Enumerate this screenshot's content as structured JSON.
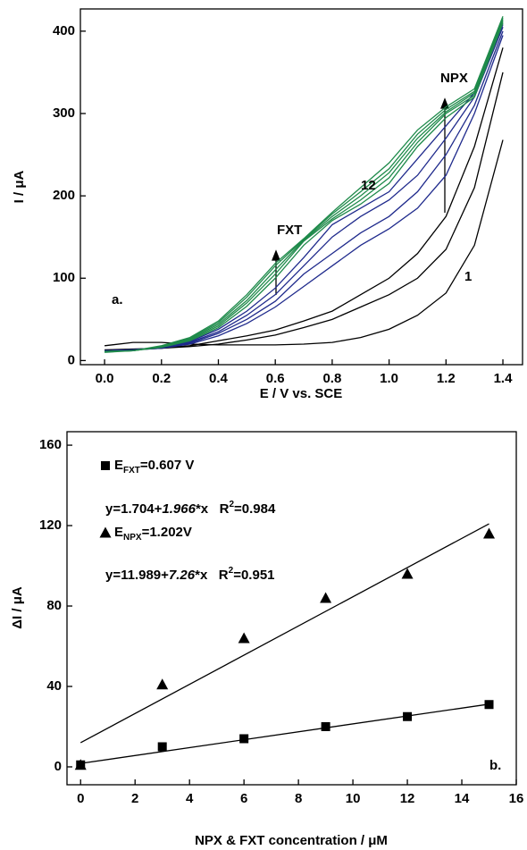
{
  "chart_data": [
    {
      "type": "line",
      "xlabel": "E / V vs. SCE",
      "ylabel": "I / μA",
      "x": [
        0,
        0.1,
        0.2,
        0.3,
        0.4,
        0.5,
        0.6,
        0.7,
        0.8,
        0.9,
        1.0,
        1.1,
        1.2,
        1.3,
        1.4
      ],
      "series": [
        {
          "color": "#000000",
          "values": [
            18,
            22,
            22,
            20,
            19,
            19,
            19,
            20,
            22,
            28,
            38,
            55,
            82,
            140,
            268
          ]
        },
        {
          "color": "#000000",
          "values": [
            13,
            14,
            15,
            17,
            20,
            25,
            31,
            40,
            50,
            65,
            80,
            100,
            135,
            210,
            350
          ]
        },
        {
          "color": "#000000",
          "values": [
            12,
            13,
            15,
            18,
            24,
            30,
            37,
            48,
            60,
            80,
            100,
            130,
            175,
            260,
            380
          ]
        },
        {
          "color": "#1f2a8c",
          "values": [
            12,
            13,
            15,
            20,
            30,
            45,
            65,
            90,
            115,
            140,
            160,
            185,
            225,
            300,
            395
          ]
        },
        {
          "color": "#1f2a8c",
          "values": [
            12,
            13,
            16,
            21,
            33,
            50,
            72,
            105,
            130,
            155,
            175,
            205,
            250,
            310,
            400
          ]
        },
        {
          "color": "#1f2a8c",
          "values": [
            12,
            13,
            16,
            22,
            35,
            55,
            80,
            115,
            150,
            175,
            195,
            225,
            270,
            320,
            405
          ]
        },
        {
          "color": "#1f2a8c",
          "values": [
            12,
            13,
            16,
            23,
            38,
            60,
            88,
            125,
            165,
            185,
            205,
            245,
            285,
            325,
            408
          ]
        },
        {
          "color": "#1e8a4a",
          "values": [
            11,
            12,
            16,
            24,
            40,
            66,
            100,
            140,
            170,
            190,
            215,
            260,
            295,
            320,
            410
          ]
        },
        {
          "color": "#1e8a4a",
          "values": [
            11,
            12,
            17,
            25,
            42,
            70,
            105,
            145,
            172,
            195,
            222,
            265,
            300,
            322,
            412
          ]
        },
        {
          "color": "#1e8a4a",
          "values": [
            11,
            12,
            17,
            26,
            44,
            73,
            110,
            146,
            175,
            200,
            228,
            270,
            302,
            325,
            414
          ]
        },
        {
          "color": "#1e8a4a",
          "values": [
            11,
            12,
            17,
            27,
            46,
            77,
            115,
            147,
            178,
            205,
            233,
            275,
            305,
            327,
            416
          ]
        },
        {
          "color": "#1e8a4a",
          "values": [
            10,
            12,
            18,
            28,
            48,
            80,
            118,
            148,
            180,
            210,
            240,
            280,
            308,
            330,
            418
          ]
        }
      ],
      "xlim": [
        -0.085,
        1.469
      ],
      "ylim": [
        -5,
        427
      ],
      "xticks": [
        {
          "value": 0,
          "label": "0.0"
        },
        {
          "value": 0.2,
          "label": "0.2"
        },
        {
          "value": 0.4,
          "label": "0.4"
        },
        {
          "value": 0.6,
          "label": "0.6"
        },
        {
          "value": 0.8,
          "label": "0.8"
        },
        {
          "value": 1.0,
          "label": "1.0"
        },
        {
          "value": 1.2,
          "label": "1.2"
        },
        {
          "value": 1.4,
          "label": "1.4"
        }
      ],
      "yticks": [
        0,
        100,
        200,
        300,
        400
      ],
      "annotations": [
        {
          "text": "a."
        },
        {
          "text": "FXT"
        },
        {
          "text": "NPX"
        },
        {
          "text": "12"
        },
        {
          "text": "1"
        }
      ]
    },
    {
      "type": "scatter",
      "xlabel": "NPX & FXT concentration / μM",
      "ylabel": "ΔI / μA",
      "series": [
        {
          "marker": "square",
          "color": "#000000",
          "x": [
            0,
            3,
            6,
            9,
            12,
            15
          ],
          "values": [
            1,
            10,
            14,
            20,
            25,
            31
          ]
        },
        {
          "marker": "triangle",
          "color": "#000000",
          "x": [
            0,
            3,
            6,
            9,
            12,
            15
          ],
          "values": [
            1,
            41,
            64,
            84,
            96,
            116
          ]
        },
        {
          "marker": "line",
          "color": "#000000",
          "x": [
            0,
            15
          ],
          "values": [
            1.7,
            31.2
          ]
        },
        {
          "marker": "line",
          "color": "#000000",
          "x": [
            0,
            15
          ],
          "values": [
            12,
            120.9
          ]
        }
      ],
      "xlim": [
        -0.5,
        16
      ],
      "ylim": [
        -8.9,
        166.7
      ],
      "xticks": [
        0,
        2,
        4,
        6,
        8,
        10,
        12,
        14,
        16
      ],
      "yticks": [
        0,
        40,
        80,
        120,
        160
      ],
      "annotations": [
        {
          "parts": [
            {
              "text": "E"
            },
            {
              "text": "FXT",
              "sub": true
            },
            {
              "text": "=0.607 V"
            }
          ]
        },
        {
          "parts": [
            {
              "text": "y=1.704+"
            },
            {
              "text": "1.966",
              "italic": true
            },
            {
              "text": "*x   R"
            },
            {
              "text": "2",
              "sup": true
            },
            {
              "text": "=0.984"
            }
          ]
        },
        {
          "parts": [
            {
              "text": "E"
            },
            {
              "text": "NPX",
              "sub": true
            },
            {
              "text": "=1.202V"
            }
          ]
        },
        {
          "parts": [
            {
              "text": "y=11.989+"
            },
            {
              "text": "7.26",
              "italic": true
            },
            {
              "text": "*x   R"
            },
            {
              "text": "2",
              "sup": true
            },
            {
              "text": "=0.951"
            }
          ]
        },
        {
          "text": "b."
        }
      ]
    }
  ]
}
